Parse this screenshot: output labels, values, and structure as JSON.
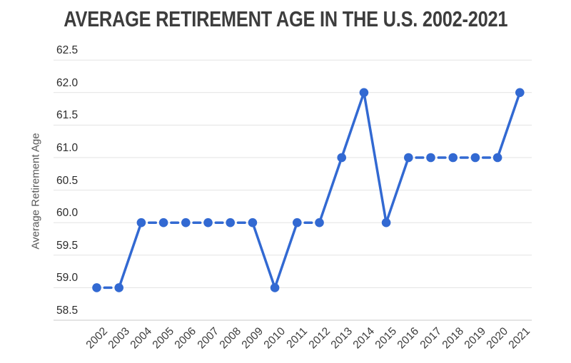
{
  "chart_data": {
    "type": "line",
    "title": "AVERAGE RETIREMENT AGE IN THE U.S. 2002-2021",
    "xlabel": "",
    "ylabel": "Average Retirement Age",
    "categories": [
      "2002",
      "2003",
      "2004",
      "2005",
      "2006",
      "2007",
      "2008",
      "2009",
      "2010",
      "2011",
      "2012",
      "2013",
      "2014",
      "2015",
      "2016",
      "2017",
      "2018",
      "2019",
      "2020",
      "2021"
    ],
    "series": [
      {
        "name": "Average Retirement Age",
        "values": [
          59,
          59,
          60,
          60,
          60,
          60,
          60,
          60,
          59,
          60,
          60,
          61,
          62,
          60,
          61,
          61,
          61,
          61,
          61,
          62
        ]
      }
    ],
    "y_ticks": [
      "58.5",
      "59.0",
      "59.5",
      "60.0",
      "60.5",
      "61.0",
      "61.5",
      "62.0",
      "62.5"
    ],
    "ylim": [
      58.5,
      62.5
    ],
    "grid": true,
    "legend": "none",
    "marker": "circle",
    "line_style": "solid diagonals, short dash between equal consecutive points",
    "colors": {
      "line": "#3269d2",
      "marker": "#3269d2",
      "gridline": "#e3e3e3",
      "axis_line": "#c9c9c9",
      "title": "#3d3d3d",
      "y_tick_label": "#2b2b2b",
      "x_tick_label": "#3a3a3a",
      "axis_title": "#575757",
      "background": "#ffffff"
    }
  }
}
